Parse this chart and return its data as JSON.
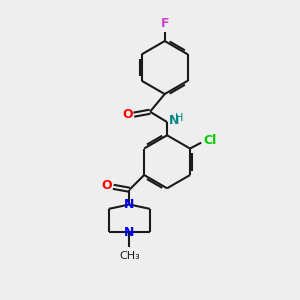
{
  "bg_color": "#eeeeee",
  "bond_color": "#1a1a1a",
  "F_color": "#cc44cc",
  "O_color": "#ff0000",
  "N_color": "#0000ff",
  "Cl_color": "#00cc00",
  "NH_color": "#008888",
  "C_color": "#1a1a1a",
  "line_width": 1.5,
  "dbo": 0.07,
  "xlim": [
    0,
    10
  ],
  "ylim": [
    0,
    10
  ]
}
